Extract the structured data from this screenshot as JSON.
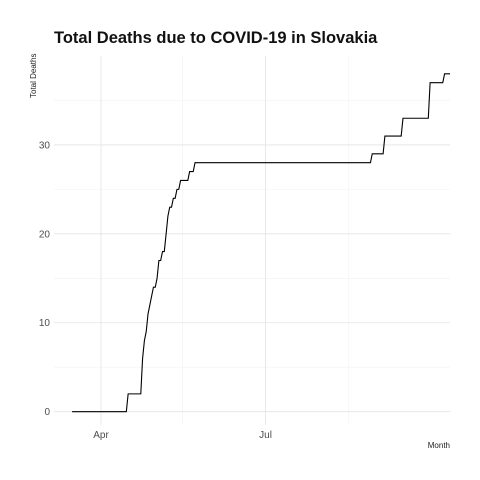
{
  "chart_data": {
    "type": "line",
    "title": "Total Deaths due to COVID-19 in Slovakia",
    "xlabel": "Month",
    "ylabel": "Total Deaths",
    "xlim": [
      "2020-03-06",
      "2020-10-11"
    ],
    "ylim": [
      -1.5,
      40
    ],
    "x_ticks": [
      {
        "date": "2020-04-01",
        "label": "Apr"
      },
      {
        "date": "2020-07-01",
        "label": "Jul"
      }
    ],
    "x_minor_ticks": [
      "2020-05-16",
      "2020-08-16"
    ],
    "y_ticks": [
      0,
      10,
      20,
      30
    ],
    "y_minor_ticks": [
      5,
      15,
      25,
      35
    ],
    "grid": true,
    "series": [
      {
        "color": "#000000",
        "points": [
          [
            "2020-03-16",
            0
          ],
          [
            "2020-04-15",
            0
          ],
          [
            "2020-04-16",
            2
          ],
          [
            "2020-04-23",
            2
          ],
          [
            "2020-04-24",
            6
          ],
          [
            "2020-04-25",
            8
          ],
          [
            "2020-04-26",
            9
          ],
          [
            "2020-04-27",
            11
          ],
          [
            "2020-04-28",
            12
          ],
          [
            "2020-04-29",
            13
          ],
          [
            "2020-04-30",
            14
          ],
          [
            "2020-05-01",
            14
          ],
          [
            "2020-05-02",
            15
          ],
          [
            "2020-05-03",
            17
          ],
          [
            "2020-05-04",
            17
          ],
          [
            "2020-05-05",
            18
          ],
          [
            "2020-05-06",
            18
          ],
          [
            "2020-05-07",
            20
          ],
          [
            "2020-05-08",
            22
          ],
          [
            "2020-05-09",
            23
          ],
          [
            "2020-05-10",
            23
          ],
          [
            "2020-05-11",
            24
          ],
          [
            "2020-05-12",
            24
          ],
          [
            "2020-05-13",
            25
          ],
          [
            "2020-05-14",
            25
          ],
          [
            "2020-05-15",
            26
          ],
          [
            "2020-05-19",
            26
          ],
          [
            "2020-05-20",
            27
          ],
          [
            "2020-05-22",
            27
          ],
          [
            "2020-05-23",
            28
          ],
          [
            "2020-08-28",
            28
          ],
          [
            "2020-08-29",
            29
          ],
          [
            "2020-09-04",
            29
          ],
          [
            "2020-09-05",
            31
          ],
          [
            "2020-09-14",
            31
          ],
          [
            "2020-09-15",
            33
          ],
          [
            "2020-09-29",
            33
          ],
          [
            "2020-09-30",
            37
          ],
          [
            "2020-10-07",
            37
          ],
          [
            "2020-10-08",
            38
          ],
          [
            "2020-10-11",
            38
          ]
        ]
      }
    ]
  }
}
